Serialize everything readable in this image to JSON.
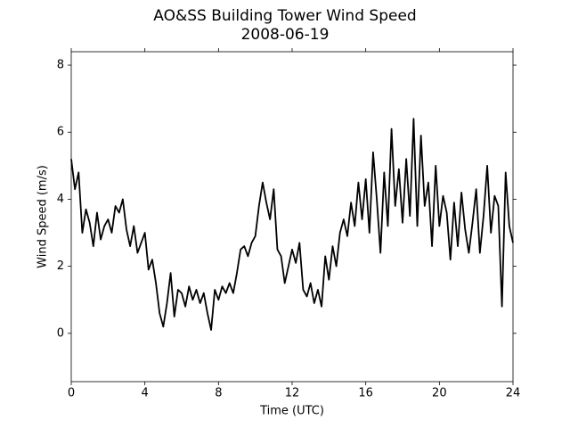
{
  "chart_data": {
    "type": "line",
    "title": "AO&SS Building Tower Wind Speed",
    "subtitle": "2008-06-19",
    "x_label": "Time (UTC)",
    "y_label": "Wind Speed (m/s)",
    "xlim": [
      0,
      24
    ],
    "xticks": [
      0,
      4,
      8,
      12,
      16,
      20,
      24
    ],
    "ylim": [
      -1.44,
      8.4
    ],
    "yticks": [
      0,
      2,
      4,
      6,
      8
    ],
    "grid": false,
    "series": [
      {
        "name": "Wind Speed",
        "color": "#000000",
        "x": [
          0,
          0.2,
          0.4,
          0.6,
          0.8,
          1.0,
          1.2,
          1.4,
          1.6,
          1.8,
          2.0,
          2.2,
          2.4,
          2.6,
          2.8,
          3.0,
          3.2,
          3.4,
          3.6,
          3.8,
          4.0,
          4.2,
          4.4,
          4.6,
          4.8,
          5.0,
          5.2,
          5.4,
          5.6,
          5.8,
          6.0,
          6.2,
          6.4,
          6.6,
          6.8,
          7.0,
          7.2,
          7.4,
          7.6,
          7.8,
          8.0,
          8.2,
          8.4,
          8.6,
          8.8,
          9.0,
          9.2,
          9.4,
          9.6,
          9.8,
          10.0,
          10.2,
          10.4,
          10.6,
          10.8,
          11.0,
          11.2,
          11.4,
          11.6,
          11.8,
          12.0,
          12.2,
          12.4,
          12.6,
          12.8,
          13.0,
          13.2,
          13.4,
          13.6,
          13.8,
          14.0,
          14.2,
          14.4,
          14.6,
          14.8,
          15.0,
          15.2,
          15.4,
          15.6,
          15.8,
          16.0,
          16.2,
          16.4,
          16.6,
          16.8,
          17.0,
          17.2,
          17.4,
          17.6,
          17.8,
          18.0,
          18.2,
          18.4,
          18.6,
          18.8,
          19.0,
          19.2,
          19.4,
          19.6,
          19.8,
          20.0,
          20.2,
          20.4,
          20.6,
          20.8,
          21.0,
          21.2,
          21.4,
          21.6,
          21.8,
          22.0,
          22.2,
          22.4,
          22.6,
          22.8,
          23.0,
          23.2,
          23.4,
          23.6,
          23.8,
          24.0
        ],
        "values": [
          5.2,
          4.3,
          4.8,
          3.0,
          3.7,
          3.3,
          2.6,
          3.6,
          2.8,
          3.2,
          3.4,
          3.0,
          3.8,
          3.6,
          4.0,
          3.1,
          2.6,
          3.2,
          2.4,
          2.7,
          3.0,
          1.9,
          2.2,
          1.5,
          0.6,
          0.2,
          0.9,
          1.8,
          0.5,
          1.3,
          1.2,
          0.8,
          1.4,
          1.0,
          1.3,
          0.9,
          1.2,
          0.6,
          0.1,
          1.3,
          1.0,
          1.4,
          1.2,
          1.5,
          1.2,
          1.8,
          2.5,
          2.6,
          2.3,
          2.7,
          2.9,
          3.8,
          4.5,
          3.9,
          3.4,
          4.3,
          2.5,
          2.3,
          1.5,
          2.0,
          2.5,
          2.1,
          2.7,
          1.3,
          1.1,
          1.5,
          0.9,
          1.3,
          0.8,
          2.3,
          1.6,
          2.6,
          2.0,
          3.0,
          3.4,
          2.9,
          3.9,
          3.2,
          4.5,
          3.4,
          4.6,
          3.0,
          5.4,
          4.0,
          2.4,
          4.8,
          3.2,
          6.1,
          3.8,
          4.9,
          3.3,
          5.2,
          3.5,
          6.4,
          3.2,
          5.9,
          3.8,
          4.5,
          2.6,
          5.0,
          3.2,
          4.1,
          3.6,
          2.2,
          3.9,
          2.6,
          4.2,
          3.1,
          2.4,
          3.3,
          4.3,
          2.4,
          3.5,
          5.0,
          3.0,
          4.1,
          3.8,
          0.8,
          4.8,
          3.2,
          2.7
        ]
      }
    ]
  }
}
